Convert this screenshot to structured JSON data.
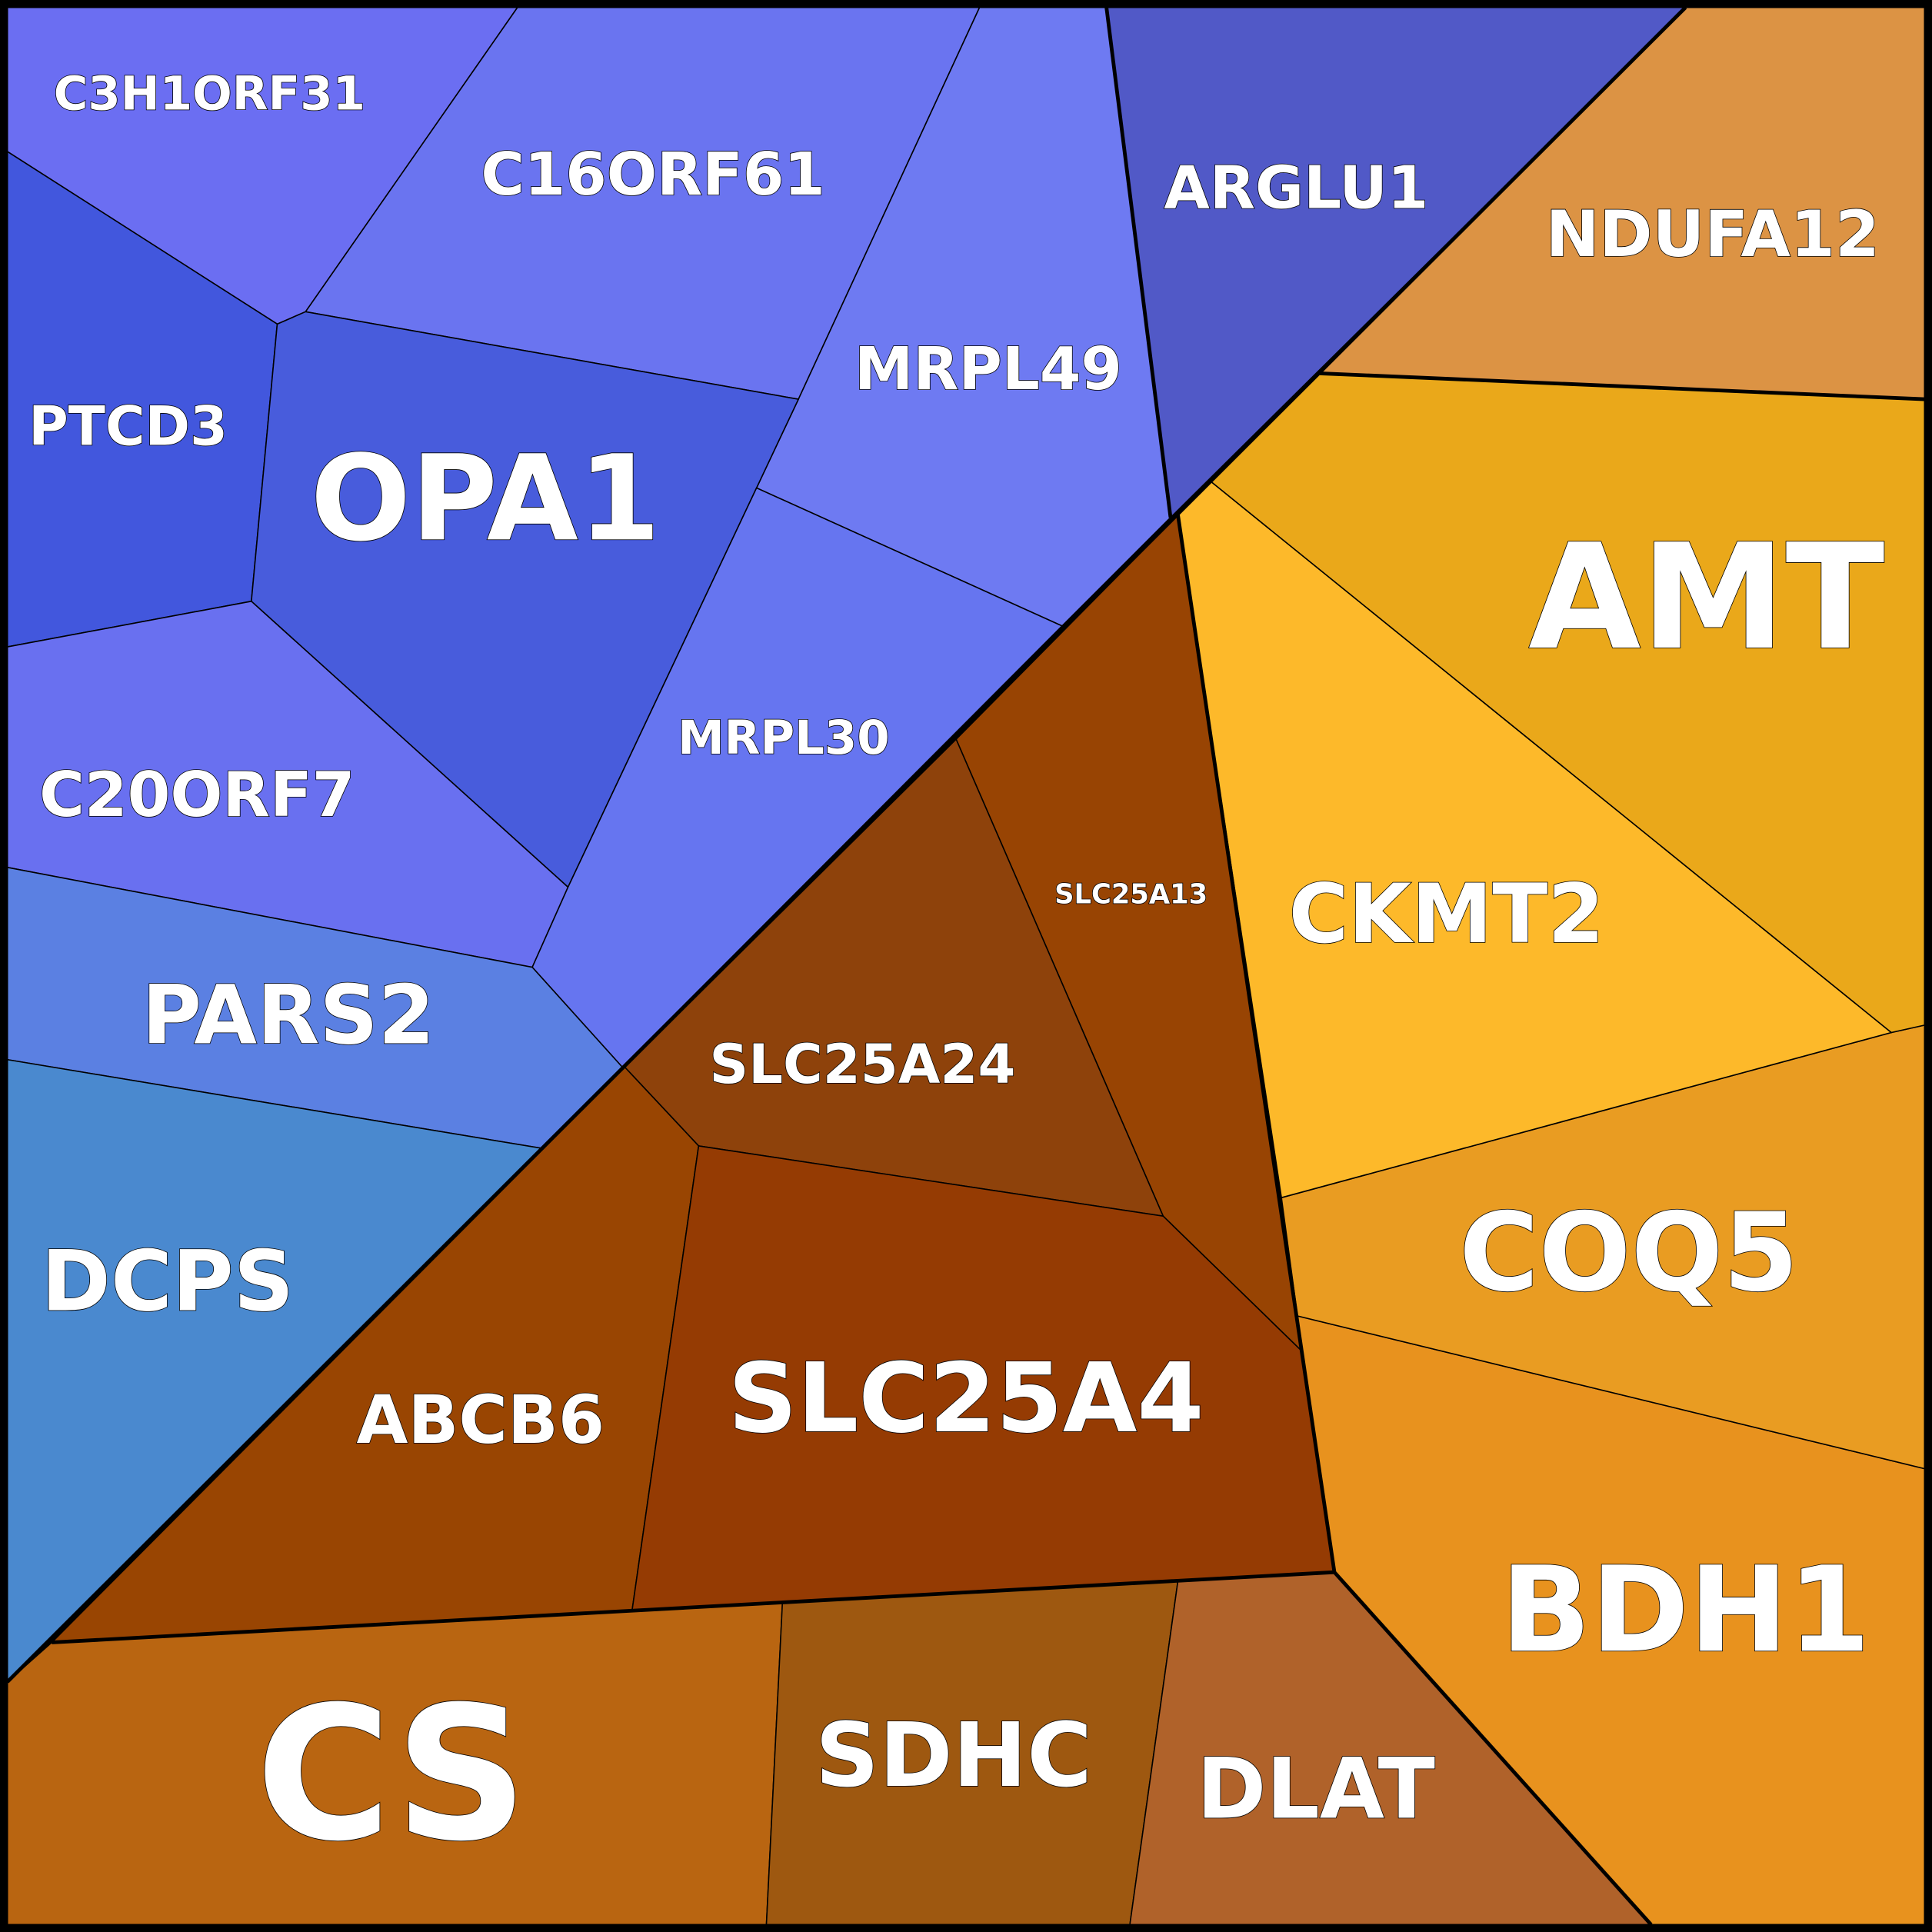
{
  "cells": [
    {
      "label": "C3H1ORF31"
    },
    {
      "label": "C16ORF61"
    },
    {
      "label": "MRPL49"
    },
    {
      "label": "ARGLU1"
    },
    {
      "label": "PTCD3"
    },
    {
      "label": "OPA1"
    },
    {
      "label": "C20ORF7"
    },
    {
      "label": "MRPL30"
    },
    {
      "label": "PARS2"
    },
    {
      "label": "DCPS"
    },
    {
      "label": "SLC25A13"
    },
    {
      "label": "SLC25A24"
    },
    {
      "label": "ABCB6"
    },
    {
      "label": "SLC25A4"
    },
    {
      "label": "CS"
    },
    {
      "label": "SDHC"
    },
    {
      "label": "DLAT"
    },
    {
      "label": "BDH1"
    },
    {
      "label": "COQ5"
    },
    {
      "label": "CKMT2"
    },
    {
      "label": "AMT"
    },
    {
      "label": "NDUFA12"
    }
  ]
}
